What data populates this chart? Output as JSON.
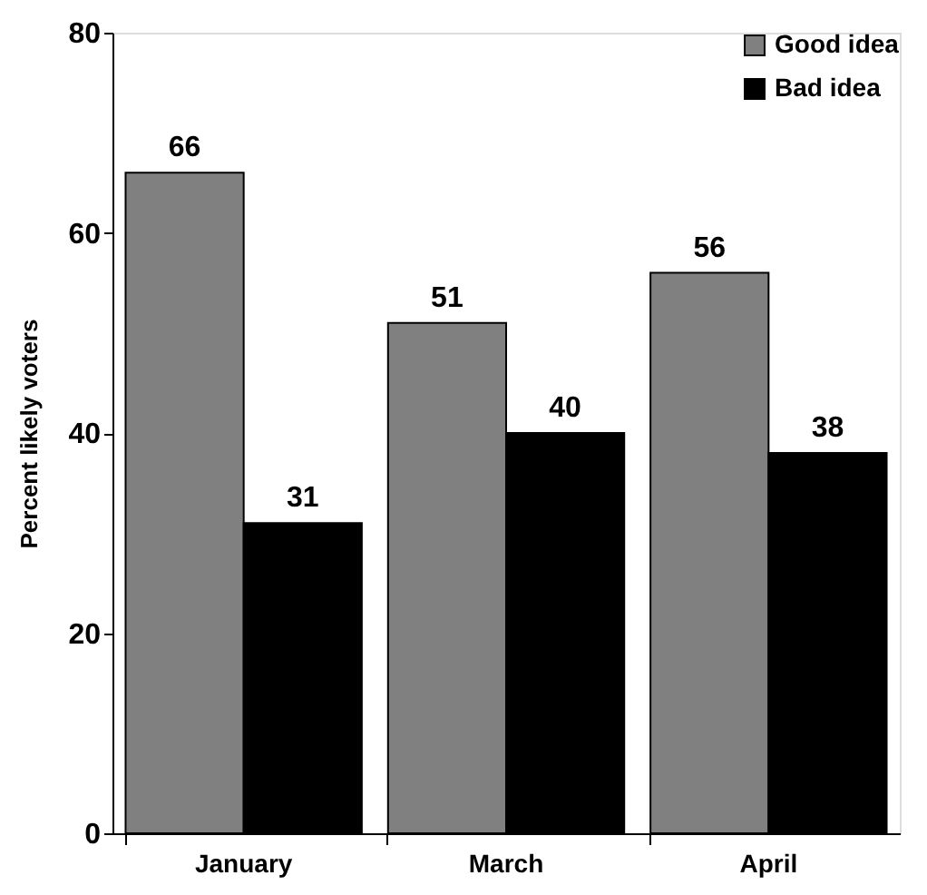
{
  "chart_data": {
    "type": "bar",
    "categories": [
      "January",
      "March",
      "April"
    ],
    "series": [
      {
        "name": "Good idea",
        "color": "#808080",
        "values": [
          66,
          51,
          56
        ]
      },
      {
        "name": "Bad idea",
        "color": "#000000",
        "values": [
          31,
          40,
          38
        ]
      }
    ],
    "ylabel": "Percent  likely voters",
    "ylim": [
      0,
      80
    ],
    "yticks": [
      0,
      20,
      40,
      60,
      80
    ],
    "grid": false,
    "legend": "top right",
    "data_labels": true
  }
}
